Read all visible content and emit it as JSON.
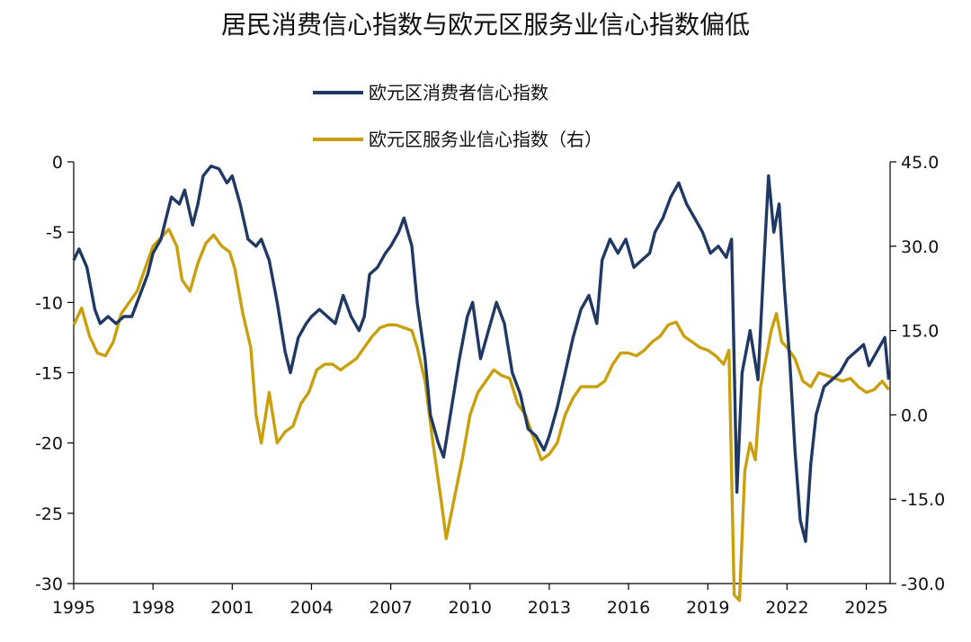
{
  "chart_data": {
    "type": "line",
    "title": "居民消费信心指数与欧元区服务业信心指数偏低",
    "x_ticks": [
      "1995",
      "1998",
      "2001",
      "2004",
      "2007",
      "2010",
      "2013",
      "2016",
      "2019",
      "2022",
      "2025"
    ],
    "xlim": [
      1995.0,
      2025.9
    ],
    "y_left": {
      "ticks": [
        "0",
        "-5",
        "-10",
        "-15",
        "-20",
        "-25",
        "-30"
      ],
      "range": [
        -30,
        0
      ]
    },
    "y_right": {
      "ticks": [
        "45.0",
        "30.0",
        "15.0",
        "0.0",
        "-15.0",
        "-30.0"
      ],
      "range": [
        -30,
        45
      ]
    },
    "series": [
      {
        "name": "欧元区消费者信心指数",
        "axis": "left",
        "color": "#1f3864",
        "points": [
          [
            1995.0,
            -7.0
          ],
          [
            1995.2,
            -6.2
          ],
          [
            1995.5,
            -7.5
          ],
          [
            1995.8,
            -10.5
          ],
          [
            1996.0,
            -11.5
          ],
          [
            1996.3,
            -11.0
          ],
          [
            1996.6,
            -11.5
          ],
          [
            1996.9,
            -11.0
          ],
          [
            1997.2,
            -11.0
          ],
          [
            1997.5,
            -9.5
          ],
          [
            1997.8,
            -8.0
          ],
          [
            1998.0,
            -6.5
          ],
          [
            1998.3,
            -5.5
          ],
          [
            1998.5,
            -4.0
          ],
          [
            1998.7,
            -2.5
          ],
          [
            1999.0,
            -3.0
          ],
          [
            1999.2,
            -2.0
          ],
          [
            1999.5,
            -4.5
          ],
          [
            1999.7,
            -3.0
          ],
          [
            1999.9,
            -1.0
          ],
          [
            2000.2,
            -0.3
          ],
          [
            2000.5,
            -0.5
          ],
          [
            2000.8,
            -1.5
          ],
          [
            2001.0,
            -1.0
          ],
          [
            2001.3,
            -3.0
          ],
          [
            2001.6,
            -5.5
          ],
          [
            2001.9,
            -6.0
          ],
          [
            2002.1,
            -5.5
          ],
          [
            2002.4,
            -7.0
          ],
          [
            2002.7,
            -10.0
          ],
          [
            2003.0,
            -13.5
          ],
          [
            2003.2,
            -15.0
          ],
          [
            2003.5,
            -12.5
          ],
          [
            2003.8,
            -11.5
          ],
          [
            2004.0,
            -11.0
          ],
          [
            2004.3,
            -10.5
          ],
          [
            2004.6,
            -11.0
          ],
          [
            2004.9,
            -11.5
          ],
          [
            2005.2,
            -9.5
          ],
          [
            2005.5,
            -11.0
          ],
          [
            2005.8,
            -12.0
          ],
          [
            2006.0,
            -11.0
          ],
          [
            2006.2,
            -8.0
          ],
          [
            2006.5,
            -7.5
          ],
          [
            2006.8,
            -6.5
          ],
          [
            2007.0,
            -6.0
          ],
          [
            2007.3,
            -5.0
          ],
          [
            2007.5,
            -4.0
          ],
          [
            2007.8,
            -6.0
          ],
          [
            2008.0,
            -10.0
          ],
          [
            2008.3,
            -14.0
          ],
          [
            2008.5,
            -18.0
          ],
          [
            2008.8,
            -20.0
          ],
          [
            2009.0,
            -21.0
          ],
          [
            2009.3,
            -17.5
          ],
          [
            2009.6,
            -14.0
          ],
          [
            2009.9,
            -11.0
          ],
          [
            2010.1,
            -10.0
          ],
          [
            2010.4,
            -14.0
          ],
          [
            2010.7,
            -12.0
          ],
          [
            2011.0,
            -10.0
          ],
          [
            2011.3,
            -11.5
          ],
          [
            2011.6,
            -15.0
          ],
          [
            2011.9,
            -16.5
          ],
          [
            2012.2,
            -19.0
          ],
          [
            2012.5,
            -19.5
          ],
          [
            2012.8,
            -20.5
          ],
          [
            2013.0,
            -19.5
          ],
          [
            2013.3,
            -17.5
          ],
          [
            2013.6,
            -15.0
          ],
          [
            2013.9,
            -12.5
          ],
          [
            2014.2,
            -10.5
          ],
          [
            2014.5,
            -9.5
          ],
          [
            2014.8,
            -11.5
          ],
          [
            2015.0,
            -7.0
          ],
          [
            2015.3,
            -5.5
          ],
          [
            2015.6,
            -6.5
          ],
          [
            2015.9,
            -5.5
          ],
          [
            2016.2,
            -7.5
          ],
          [
            2016.5,
            -7.0
          ],
          [
            2016.8,
            -6.5
          ],
          [
            2017.0,
            -5.0
          ],
          [
            2017.3,
            -4.0
          ],
          [
            2017.6,
            -2.5
          ],
          [
            2017.9,
            -1.5
          ],
          [
            2018.2,
            -3.0
          ],
          [
            2018.5,
            -4.0
          ],
          [
            2018.8,
            -5.0
          ],
          [
            2019.1,
            -6.5
          ],
          [
            2019.4,
            -6.0
          ],
          [
            2019.7,
            -6.8
          ],
          [
            2019.9,
            -5.5
          ],
          [
            2020.1,
            -23.5
          ],
          [
            2020.3,
            -15.0
          ],
          [
            2020.6,
            -12.0
          ],
          [
            2020.9,
            -15.5
          ],
          [
            2021.1,
            -8.0
          ],
          [
            2021.3,
            -1.0
          ],
          [
            2021.5,
            -5.0
          ],
          [
            2021.7,
            -3.0
          ],
          [
            2021.9,
            -9.0
          ],
          [
            2022.1,
            -14.0
          ],
          [
            2022.3,
            -20.5
          ],
          [
            2022.5,
            -25.5
          ],
          [
            2022.7,
            -27.0
          ],
          [
            2022.9,
            -21.5
          ],
          [
            2023.1,
            -18.0
          ],
          [
            2023.4,
            -16.0
          ],
          [
            2023.7,
            -15.5
          ],
          [
            2024.0,
            -15.0
          ],
          [
            2024.3,
            -14.0
          ],
          [
            2024.6,
            -13.5
          ],
          [
            2024.9,
            -13.0
          ],
          [
            2025.1,
            -14.5
          ],
          [
            2025.4,
            -13.5
          ],
          [
            2025.7,
            -12.5
          ],
          [
            2025.85,
            -15.5
          ]
        ]
      },
      {
        "name": "欧元区服务业信心指数（右）",
        "axis": "right",
        "color": "#c9a00b",
        "points": [
          [
            1995.0,
            16.0
          ],
          [
            1995.3,
            19.0
          ],
          [
            1995.6,
            14.0
          ],
          [
            1995.9,
            11.0
          ],
          [
            1996.2,
            10.5
          ],
          [
            1996.5,
            13.0
          ],
          [
            1996.8,
            18.0
          ],
          [
            1997.1,
            20.0
          ],
          [
            1997.4,
            22.0
          ],
          [
            1997.7,
            26.0
          ],
          [
            1998.0,
            30.0
          ],
          [
            1998.3,
            31.5
          ],
          [
            1998.6,
            33.0
          ],
          [
            1998.9,
            30.0
          ],
          [
            1999.1,
            24.0
          ],
          [
            1999.4,
            22.0
          ],
          [
            1999.7,
            27.0
          ],
          [
            2000.0,
            30.5
          ],
          [
            2000.3,
            32.0
          ],
          [
            2000.6,
            30.0
          ],
          [
            2000.9,
            29.0
          ],
          [
            2001.1,
            26.0
          ],
          [
            2001.4,
            18.0
          ],
          [
            2001.7,
            12.0
          ],
          [
            2001.9,
            0.0
          ],
          [
            2002.1,
            -5.0
          ],
          [
            2002.4,
            4.0
          ],
          [
            2002.7,
            -5.0
          ],
          [
            2003.0,
            -3.0
          ],
          [
            2003.3,
            -2.0
          ],
          [
            2003.6,
            2.0
          ],
          [
            2003.9,
            4.0
          ],
          [
            2004.2,
            8.0
          ],
          [
            2004.5,
            9.0
          ],
          [
            2004.8,
            9.0
          ],
          [
            2005.1,
            8.0
          ],
          [
            2005.4,
            9.0
          ],
          [
            2005.7,
            10.0
          ],
          [
            2006.0,
            12.0
          ],
          [
            2006.3,
            14.0
          ],
          [
            2006.6,
            15.5
          ],
          [
            2006.9,
            16.0
          ],
          [
            2007.2,
            16.0
          ],
          [
            2007.5,
            15.5
          ],
          [
            2007.8,
            15.0
          ],
          [
            2008.0,
            12.0
          ],
          [
            2008.3,
            6.0
          ],
          [
            2008.6,
            -5.0
          ],
          [
            2008.9,
            -15.0
          ],
          [
            2009.1,
            -22.0
          ],
          [
            2009.4,
            -15.0
          ],
          [
            2009.7,
            -8.0
          ],
          [
            2010.0,
            0.0
          ],
          [
            2010.3,
            4.0
          ],
          [
            2010.6,
            6.0
          ],
          [
            2010.9,
            8.0
          ],
          [
            2011.2,
            7.0
          ],
          [
            2011.5,
            6.5
          ],
          [
            2011.8,
            2.0
          ],
          [
            2012.1,
            0.0
          ],
          [
            2012.4,
            -4.0
          ],
          [
            2012.7,
            -8.0
          ],
          [
            2013.0,
            -7.0
          ],
          [
            2013.3,
            -5.0
          ],
          [
            2013.6,
            0.0
          ],
          [
            2013.9,
            3.0
          ],
          [
            2014.2,
            5.0
          ],
          [
            2014.5,
            5.0
          ],
          [
            2014.8,
            5.0
          ],
          [
            2015.1,
            6.0
          ],
          [
            2015.4,
            9.0
          ],
          [
            2015.7,
            11.0
          ],
          [
            2016.0,
            11.0
          ],
          [
            2016.3,
            10.5
          ],
          [
            2016.6,
            11.5
          ],
          [
            2016.9,
            13.0
          ],
          [
            2017.2,
            14.0
          ],
          [
            2017.5,
            16.0
          ],
          [
            2017.8,
            16.5
          ],
          [
            2018.1,
            14.0
          ],
          [
            2018.4,
            13.0
          ],
          [
            2018.7,
            12.0
          ],
          [
            2019.0,
            11.5
          ],
          [
            2019.3,
            10.5
          ],
          [
            2019.6,
            9.0
          ],
          [
            2019.8,
            11.5
          ],
          [
            2020.0,
            -32.0
          ],
          [
            2020.2,
            -33.0
          ],
          [
            2020.4,
            -10.0
          ],
          [
            2020.6,
            -5.0
          ],
          [
            2020.8,
            -8.0
          ],
          [
            2021.0,
            5.0
          ],
          [
            2021.2,
            10.0
          ],
          [
            2021.4,
            15.0
          ],
          [
            2021.6,
            18.0
          ],
          [
            2021.8,
            13.0
          ],
          [
            2022.0,
            12.0
          ],
          [
            2022.3,
            10.0
          ],
          [
            2022.6,
            6.0
          ],
          [
            2022.9,
            5.0
          ],
          [
            2023.2,
            7.5
          ],
          [
            2023.5,
            7.0
          ],
          [
            2023.8,
            6.5
          ],
          [
            2024.1,
            6.0
          ],
          [
            2024.4,
            6.5
          ],
          [
            2024.7,
            5.0
          ],
          [
            2025.0,
            4.0
          ],
          [
            2025.3,
            4.5
          ],
          [
            2025.6,
            6.0
          ],
          [
            2025.85,
            4.5
          ]
        ]
      }
    ]
  }
}
